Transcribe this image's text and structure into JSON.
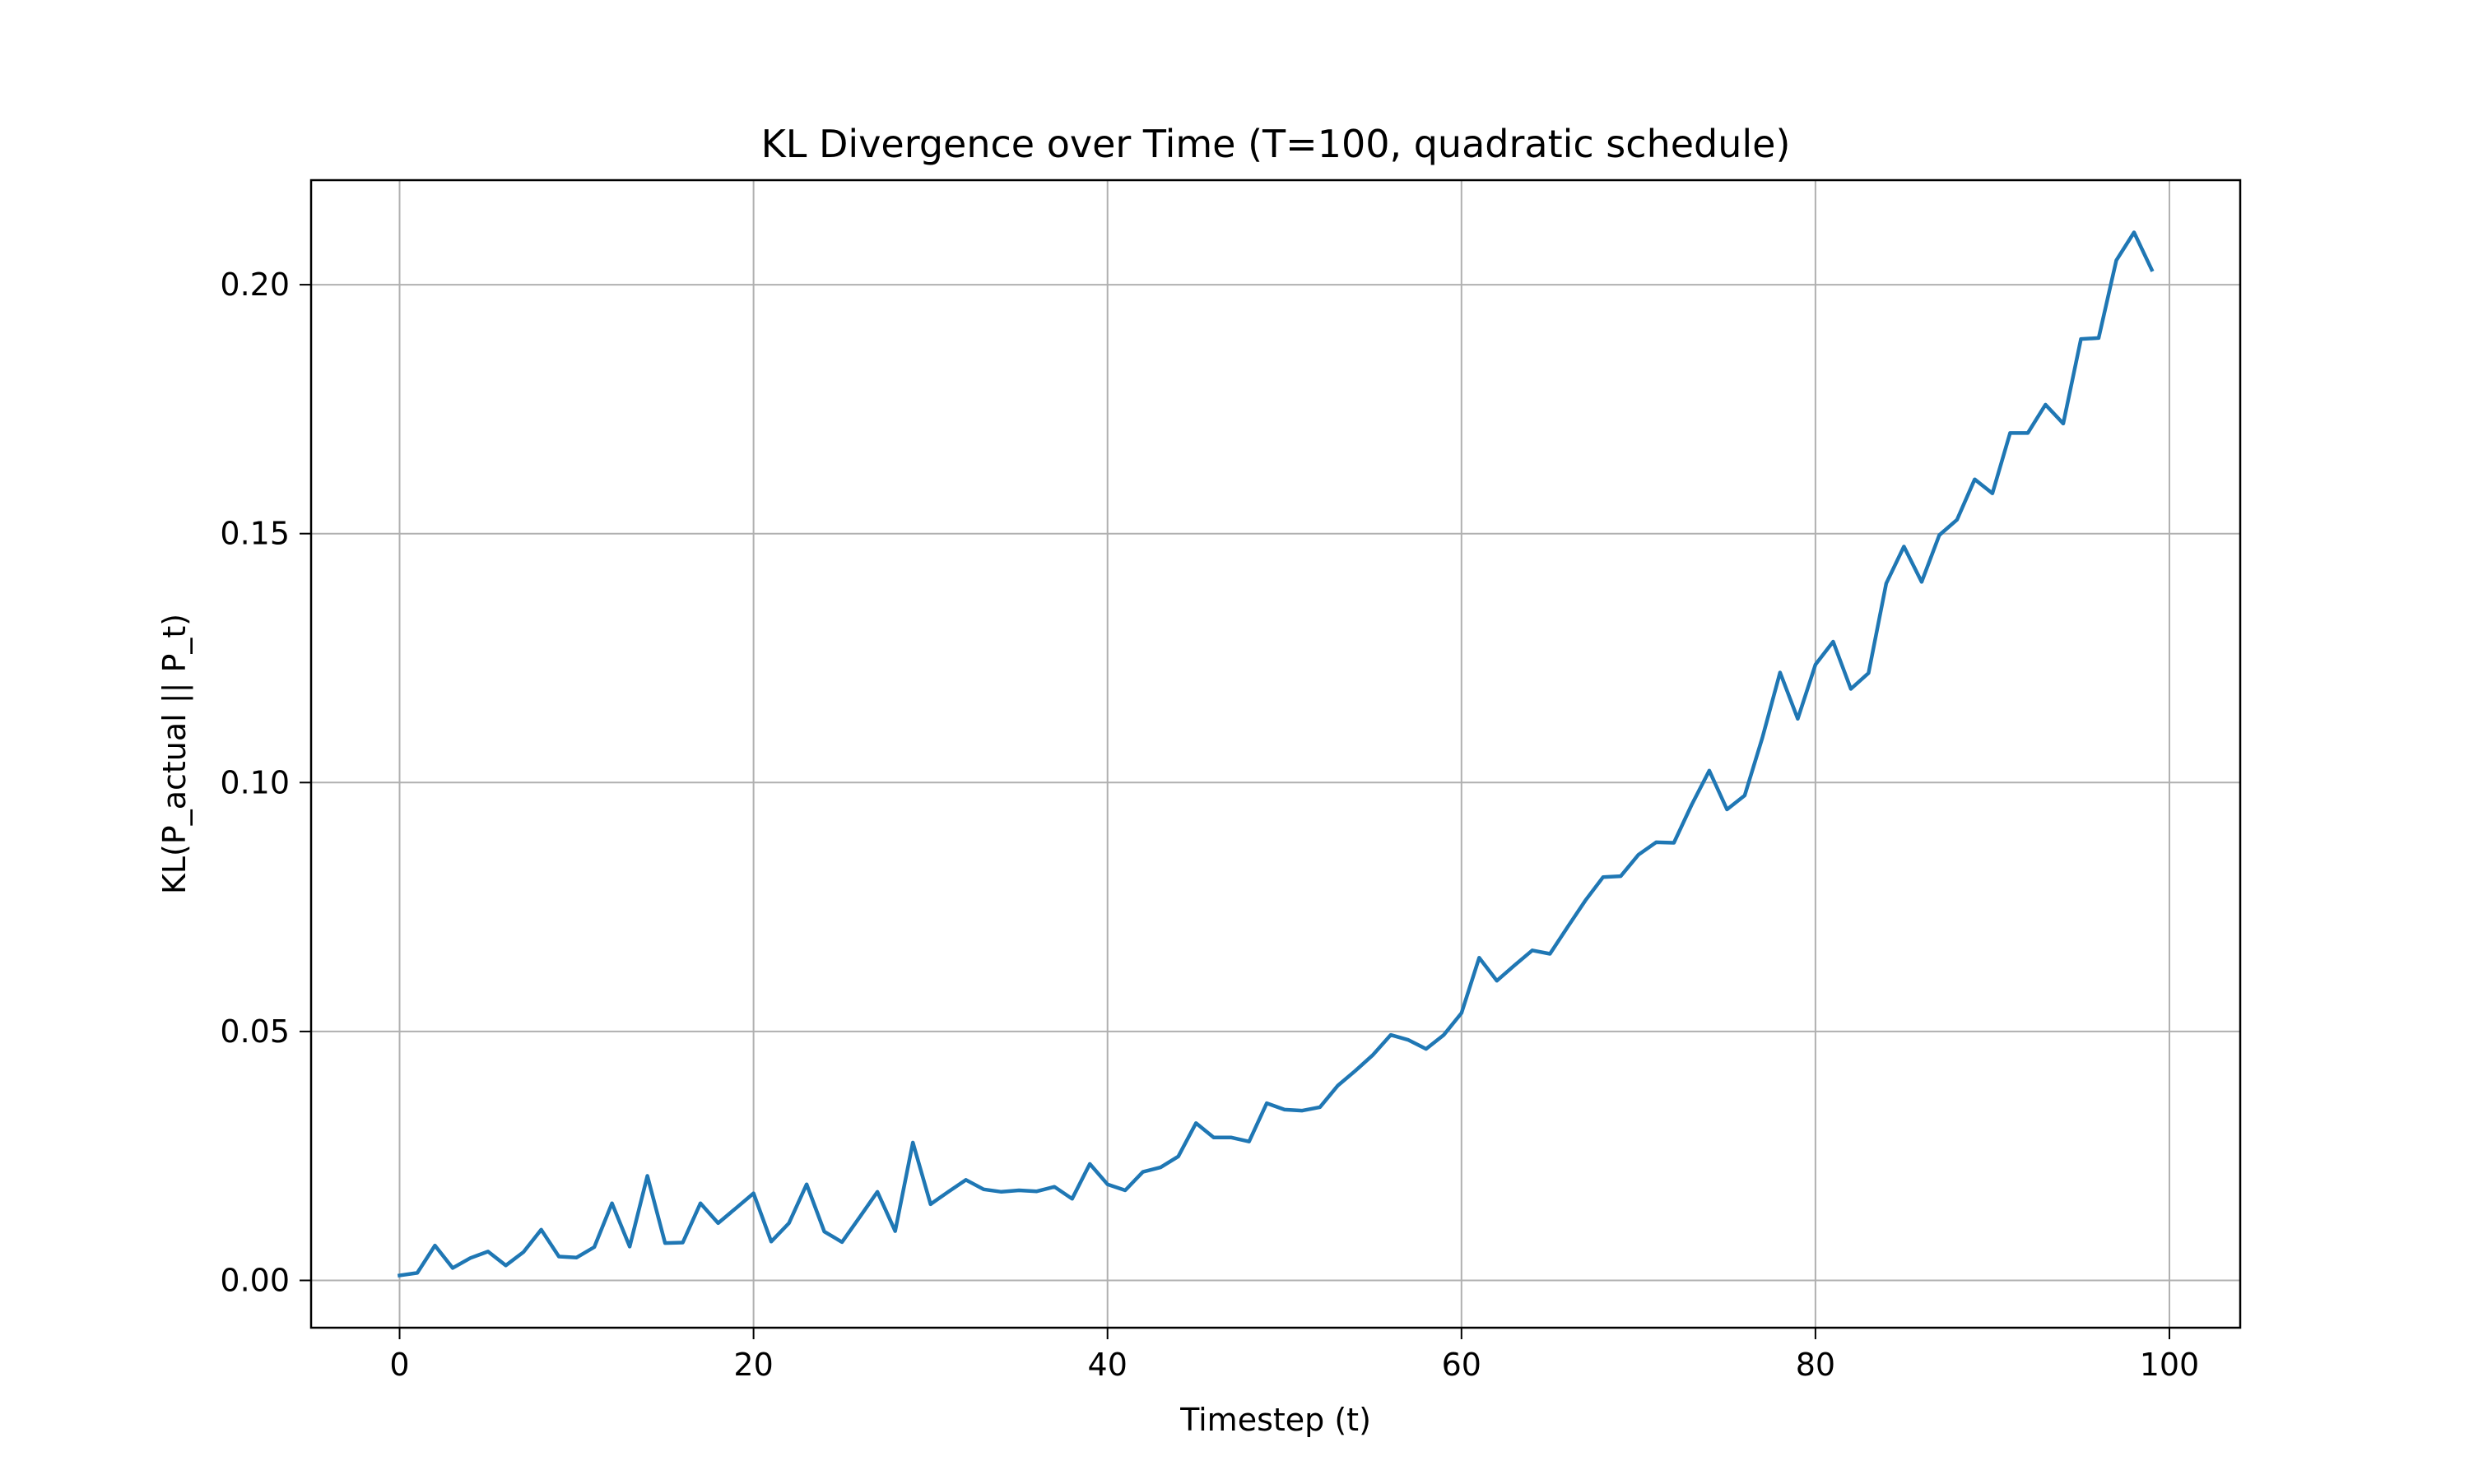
{
  "chart_data": {
    "type": "line",
    "title": "KL Divergence over Time (T=100, quadratic schedule)",
    "xlabel": "Timestep (t)",
    "ylabel": "KL(P_actual || P_t)",
    "xlim": [
      -5,
      104
    ],
    "ylim": [
      -0.0095,
      0.221
    ],
    "xticks": [
      0,
      20,
      40,
      60,
      80,
      100
    ],
    "xtick_labels": [
      "0",
      "20",
      "40",
      "60",
      "80",
      "100"
    ],
    "yticks": [
      0.0,
      0.05,
      0.1,
      0.15,
      0.2
    ],
    "ytick_labels": [
      "0.00",
      "0.05",
      "0.10",
      "0.15",
      "0.20"
    ],
    "grid": true,
    "series": [
      {
        "color": "#1f77b4",
        "x": [
          0,
          1,
          2,
          3,
          4,
          5,
          6,
          7,
          8,
          9,
          10,
          11,
          12,
          13,
          14,
          15,
          16,
          17,
          18,
          19,
          20,
          21,
          22,
          23,
          24,
          25,
          26,
          27,
          28,
          29,
          30,
          31,
          32,
          33,
          34,
          35,
          36,
          37,
          38,
          39,
          40,
          41,
          42,
          43,
          44,
          45,
          46,
          47,
          48,
          49,
          50,
          51,
          52,
          53,
          54,
          55,
          56,
          57,
          58,
          59,
          60,
          61,
          62,
          63,
          64,
          65,
          66,
          67,
          68,
          69,
          70,
          71,
          72,
          73,
          74,
          75,
          76,
          77,
          78,
          79,
          80,
          81,
          82,
          83,
          84,
          85,
          86,
          87,
          88,
          89,
          90,
          91,
          92,
          93,
          94,
          95,
          96,
          97,
          98,
          99
        ],
        "y": [
          0.001,
          0.0015,
          0.007,
          0.0025,
          0.0045,
          0.0058,
          0.003,
          0.0057,
          0.0102,
          0.0048,
          0.0046,
          0.0067,
          0.0155,
          0.0068,
          0.021,
          0.0075,
          0.0076,
          0.0155,
          0.0115,
          0.0145,
          0.0175,
          0.0078,
          0.0115,
          0.0193,
          0.0098,
          0.0077,
          0.0127,
          0.0178,
          0.0099,
          0.0277,
          0.0153,
          0.0178,
          0.0202,
          0.0183,
          0.0178,
          0.0181,
          0.0179,
          0.0188,
          0.0164,
          0.0234,
          0.0193,
          0.0181,
          0.0218,
          0.0227,
          0.0249,
          0.0316,
          0.0287,
          0.0287,
          0.0279,
          0.0356,
          0.0343,
          0.0341,
          0.0348,
          0.0391,
          0.0421,
          0.0453,
          0.0493,
          0.0483,
          0.0465,
          0.0493,
          0.0537,
          0.0648,
          0.0602,
          0.0633,
          0.0663,
          0.0656,
          0.071,
          0.0763,
          0.081,
          0.0812,
          0.0855,
          0.088,
          0.0879,
          0.0955,
          0.1024,
          0.0946,
          0.0974,
          0.109,
          0.1221,
          0.1128,
          0.1237,
          0.1283,
          0.1188,
          0.122,
          0.14,
          0.1474,
          0.1403,
          0.1497,
          0.1528,
          0.1609,
          0.1581,
          0.1702,
          0.1702,
          0.1759,
          0.1721,
          0.1891,
          0.1893,
          0.2049,
          0.2105,
          0.203
        ]
      }
    ]
  }
}
